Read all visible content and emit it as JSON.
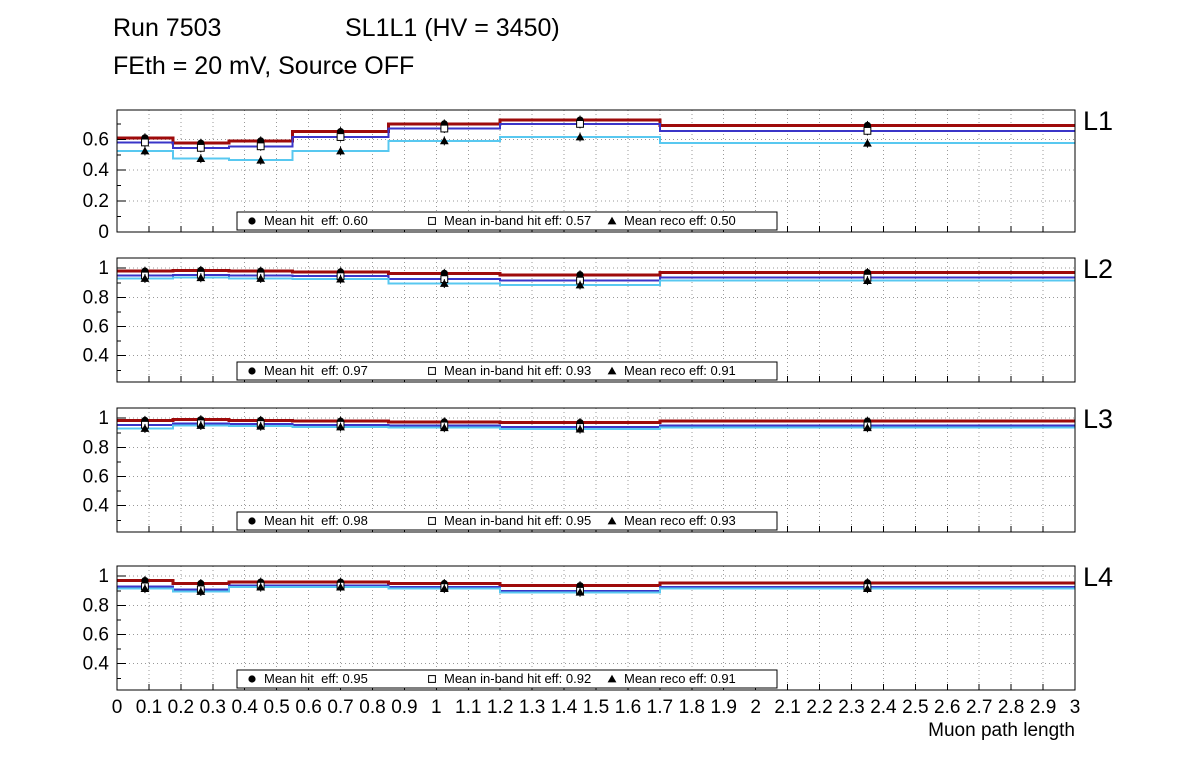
{
  "chart_data": {
    "type": "line",
    "header": {
      "run": "Run 7503",
      "chamber": "SL1L1 (HV = 3450)",
      "settings": "FEth = 20 mV, Source OFF"
    },
    "xlabel": "Muon path length",
    "xlim": [
      0,
      3
    ],
    "x_tick_step": 0.1,
    "grid": "dotted",
    "legend_position": "bottom-center-inside",
    "marker_color": "#000000",
    "bin_edges": [
      0,
      0.175,
      0.35,
      0.55,
      0.85,
      1.2,
      1.7,
      3.0
    ],
    "series_meta": [
      {
        "key": "hit",
        "name": "Mean hit eff",
        "color": "#9e0b0b",
        "width": 3,
        "marker": "circle-filled"
      },
      {
        "key": "inband",
        "name": "Mean in-band hit eff",
        "color": "#3a35c8",
        "width": 2,
        "marker": "square-open"
      },
      {
        "key": "reco",
        "name": "Mean reco eff",
        "color": "#58c8f0",
        "width": 2,
        "marker": "triangle-filled"
      }
    ],
    "panels": [
      {
        "label": "L1",
        "ylim": [
          0,
          0.79
        ],
        "yticks": [
          0,
          0.2,
          0.4,
          0.6
        ],
        "series": {
          "hit": [
            0.61,
            0.575,
            0.59,
            0.65,
            0.7,
            0.725,
            0.69
          ],
          "inband": [
            0.58,
            0.545,
            0.555,
            0.615,
            0.67,
            0.7,
            0.655
          ],
          "reco": [
            0.525,
            0.475,
            0.465,
            0.525,
            0.59,
            0.615,
            0.575
          ]
        },
        "legend": [
          "Mean hit  eff: 0.60",
          "Mean in-band hit eff: 0.57",
          "Mean reco eff: 0.50"
        ]
      },
      {
        "label": "L2",
        "ylim": [
          0.22,
          1.07
        ],
        "yticks": [
          0.4,
          0.6,
          0.8,
          1
        ],
        "series": {
          "hit": [
            0.98,
            0.985,
            0.98,
            0.975,
            0.965,
            0.955,
            0.97
          ],
          "inband": [
            0.95,
            0.955,
            0.95,
            0.945,
            0.925,
            0.915,
            0.935
          ],
          "reco": [
            0.93,
            0.935,
            0.93,
            0.925,
            0.895,
            0.885,
            0.915
          ]
        },
        "legend": [
          "Mean hit  eff: 0.97",
          "Mean in-band hit eff: 0.93",
          "Mean reco eff: 0.91"
        ]
      },
      {
        "label": "L3",
        "ylim": [
          0.22,
          1.07
        ],
        "yticks": [
          0.4,
          0.6,
          0.8,
          1
        ],
        "series": {
          "hit": [
            0.985,
            0.99,
            0.985,
            0.98,
            0.975,
            0.97,
            0.98
          ],
          "inband": [
            0.955,
            0.965,
            0.96,
            0.955,
            0.95,
            0.94,
            0.95
          ],
          "reco": [
            0.93,
            0.95,
            0.945,
            0.94,
            0.935,
            0.925,
            0.935
          ]
        },
        "legend": [
          "Mean hit  eff: 0.98",
          "Mean in-band hit eff: 0.95",
          "Mean reco eff: 0.93"
        ]
      },
      {
        "label": "L4",
        "ylim": [
          0.22,
          1.07
        ],
        "yticks": [
          0.4,
          0.6,
          0.8,
          1
        ],
        "series": {
          "hit": [
            0.97,
            0.95,
            0.96,
            0.96,
            0.95,
            0.935,
            0.955
          ],
          "inband": [
            0.93,
            0.91,
            0.935,
            0.935,
            0.925,
            0.9,
            0.925
          ],
          "reco": [
            0.915,
            0.895,
            0.925,
            0.925,
            0.915,
            0.89,
            0.915
          ]
        },
        "legend": [
          "Mean hit  eff: 0.95",
          "Mean in-band hit eff: 0.92",
          "Mean reco eff: 0.91"
        ]
      }
    ]
  }
}
